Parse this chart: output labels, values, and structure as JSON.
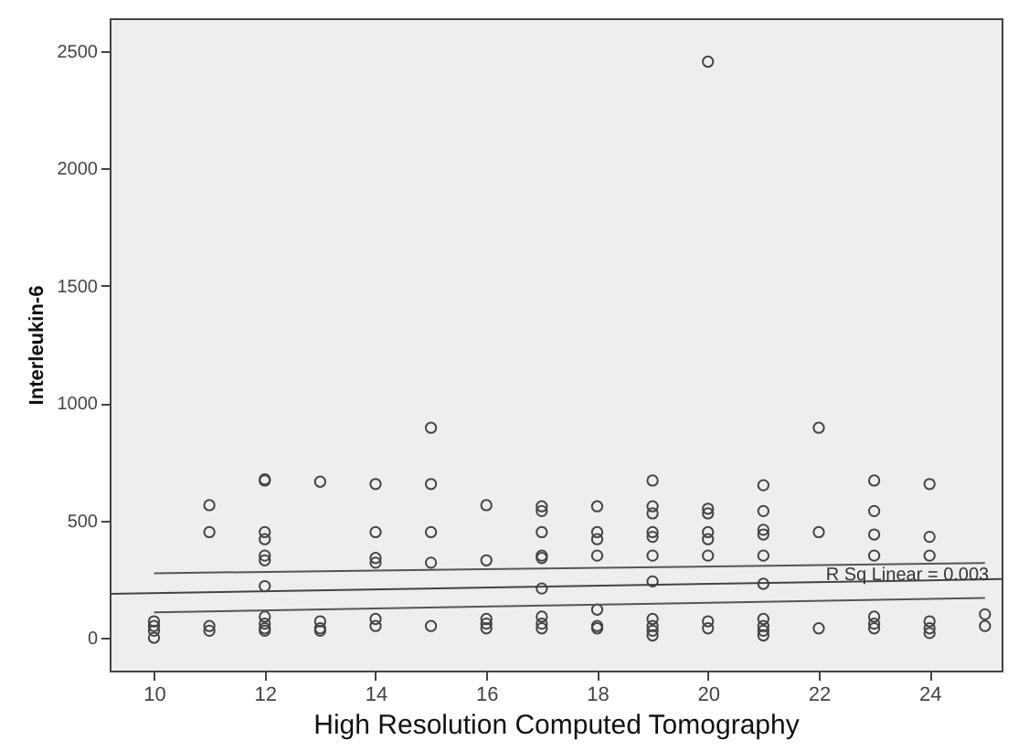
{
  "chart_data": {
    "type": "scatter",
    "xlabel": "High Resolution Computed Tomography",
    "ylabel": "Interleukin-6",
    "xlim": [
      9.2,
      25.3
    ],
    "ylim": [
      -140,
      2640
    ],
    "xticks": [
      10,
      12,
      14,
      16,
      18,
      20,
      22,
      24
    ],
    "yticks": [
      0,
      500,
      1000,
      1500,
      2000,
      2500
    ],
    "grid": false,
    "marker": "circle",
    "annotations": [
      {
        "text": "R Sq Linear = 0.003",
        "x": 23.6,
        "y": 268
      }
    ],
    "series": [
      {
        "color": "#444444",
        "x": [
          10,
          10,
          10,
          10,
          11,
          11,
          11,
          11,
          12,
          12,
          12,
          12,
          12,
          12,
          12,
          12,
          12,
          12,
          12,
          13,
          13,
          13,
          13,
          14,
          14,
          14,
          14,
          14,
          14,
          15,
          15,
          15,
          15,
          15,
          16,
          16,
          16,
          16,
          16,
          17,
          17,
          17,
          17,
          17,
          17,
          17,
          17,
          17,
          18,
          18,
          18,
          18,
          18,
          18,
          18,
          19,
          19,
          19,
          19,
          19,
          19,
          19,
          19,
          19,
          19,
          19,
          20,
          20,
          20,
          20,
          20,
          20,
          20,
          20,
          21,
          21,
          21,
          21,
          21,
          21,
          21,
          21,
          21,
          21,
          22,
          22,
          22,
          23,
          23,
          23,
          23,
          23,
          23,
          23,
          24,
          24,
          24,
          24,
          24,
          24,
          25,
          25
        ],
        "values": [
          70,
          50,
          30,
          0,
          565,
          450,
          50,
          30,
          675,
          670,
          450,
          420,
          350,
          330,
          220,
          90,
          60,
          40,
          30,
          665,
          70,
          40,
          30,
          655,
          450,
          340,
          320,
          80,
          50,
          895,
          655,
          450,
          320,
          50,
          565,
          330,
          80,
          60,
          40,
          560,
          540,
          450,
          350,
          340,
          210,
          90,
          60,
          40,
          560,
          450,
          420,
          350,
          120,
          50,
          40,
          670,
          560,
          530,
          450,
          430,
          350,
          240,
          80,
          50,
          30,
          10,
          2455,
          550,
          530,
          450,
          420,
          350,
          70,
          40,
          650,
          540,
          460,
          440,
          350,
          230,
          80,
          50,
          30,
          10,
          895,
          450,
          40,
          670,
          540,
          440,
          350,
          90,
          60,
          40,
          655,
          430,
          350,
          70,
          40,
          20,
          100,
          50
        ]
      },
      {
        "type": "line",
        "marker": "none",
        "color": "#444444",
        "x": [
          9.2,
          25.3
        ],
        "values": [
          187,
          250
        ]
      },
      {
        "type": "line",
        "marker": "none",
        "color": "#555555",
        "x": [
          10,
          25
        ],
        "values": [
          275,
          318
        ]
      },
      {
        "type": "line",
        "marker": "none",
        "color": "#555555",
        "x": [
          10,
          25
        ],
        "values": [
          108,
          170
        ]
      }
    ]
  }
}
